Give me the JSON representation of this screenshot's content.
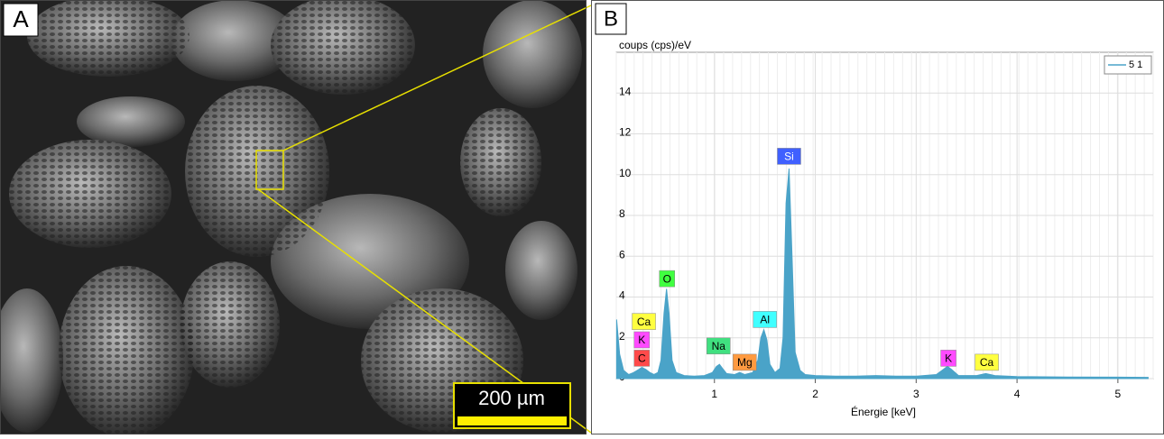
{
  "panel_a": {
    "label": "A",
    "scale_bar": "200 µm"
  },
  "panel_b": {
    "label": "B"
  },
  "chart_data": {
    "type": "area",
    "y_label": "coups (cps)/eV",
    "x_label": "Énergie [keV]",
    "x": [
      0.03,
      0.06,
      0.1,
      0.15,
      0.2,
      0.25,
      0.28,
      0.32,
      0.36,
      0.4,
      0.44,
      0.47,
      0.5,
      0.525,
      0.55,
      0.58,
      0.62,
      0.7,
      0.8,
      0.9,
      0.98,
      1.02,
      1.05,
      1.08,
      1.12,
      1.2,
      1.25,
      1.3,
      1.38,
      1.43,
      1.46,
      1.49,
      1.52,
      1.55,
      1.6,
      1.65,
      1.68,
      1.71,
      1.74,
      1.77,
      1.8,
      1.85,
      1.9,
      2.0,
      2.2,
      2.4,
      2.6,
      2.8,
      3.0,
      3.2,
      3.27,
      3.31,
      3.35,
      3.42,
      3.6,
      3.69,
      3.78,
      4.0,
      4.5,
      5.0,
      5.3
    ],
    "series": [
      {
        "name": "5 1",
        "color": "#4aa3c8",
        "values": [
          2.9,
          1.2,
          0.4,
          0.2,
          0.3,
          0.45,
          0.55,
          0.45,
          0.3,
          0.2,
          0.3,
          0.9,
          3.2,
          4.4,
          3.2,
          0.9,
          0.3,
          0.15,
          0.12,
          0.15,
          0.3,
          0.6,
          0.7,
          0.5,
          0.25,
          0.2,
          0.3,
          0.2,
          0.3,
          0.9,
          2.0,
          2.4,
          1.9,
          0.7,
          0.3,
          0.5,
          2.0,
          8.6,
          10.3,
          5.9,
          1.3,
          0.4,
          0.2,
          0.15,
          0.12,
          0.12,
          0.15,
          0.12,
          0.12,
          0.2,
          0.45,
          0.6,
          0.45,
          0.15,
          0.15,
          0.25,
          0.15,
          0.1,
          0.08,
          0.07,
          0.06
        ]
      }
    ],
    "xlim": [
      0,
      5.35
    ],
    "ylim": [
      0,
      16
    ],
    "xticks": [
      1,
      2,
      3,
      4,
      5
    ],
    "yticks": [
      0,
      2,
      4,
      6,
      8,
      10,
      12,
      14
    ],
    "grid": true,
    "legend": "top-right",
    "annotations": [
      {
        "text": "C",
        "x": 0.28,
        "y": 1.0,
        "color": "#ff4a4a"
      },
      {
        "text": "K",
        "x": 0.28,
        "y": 1.9,
        "color": "#ff4aff"
      },
      {
        "text": "Ca",
        "x": 0.3,
        "y": 2.8,
        "color": "#ffff40"
      },
      {
        "text": "O",
        "x": 0.53,
        "y": 4.9,
        "color": "#40ff40"
      },
      {
        "text": "Na",
        "x": 1.04,
        "y": 1.6,
        "color": "#40e080"
      },
      {
        "text": "Mg",
        "x": 1.3,
        "y": 0.8,
        "color": "#ff9a40"
      },
      {
        "text": "Al",
        "x": 1.5,
        "y": 2.9,
        "color": "#40ffff"
      },
      {
        "text": "Si",
        "x": 1.74,
        "y": 10.9,
        "color": "#4060ff"
      },
      {
        "text": "K",
        "x": 3.32,
        "y": 1.0,
        "color": "#ff4aff"
      },
      {
        "text": "Ca",
        "x": 3.7,
        "y": 0.8,
        "color": "#ffff40"
      }
    ]
  }
}
